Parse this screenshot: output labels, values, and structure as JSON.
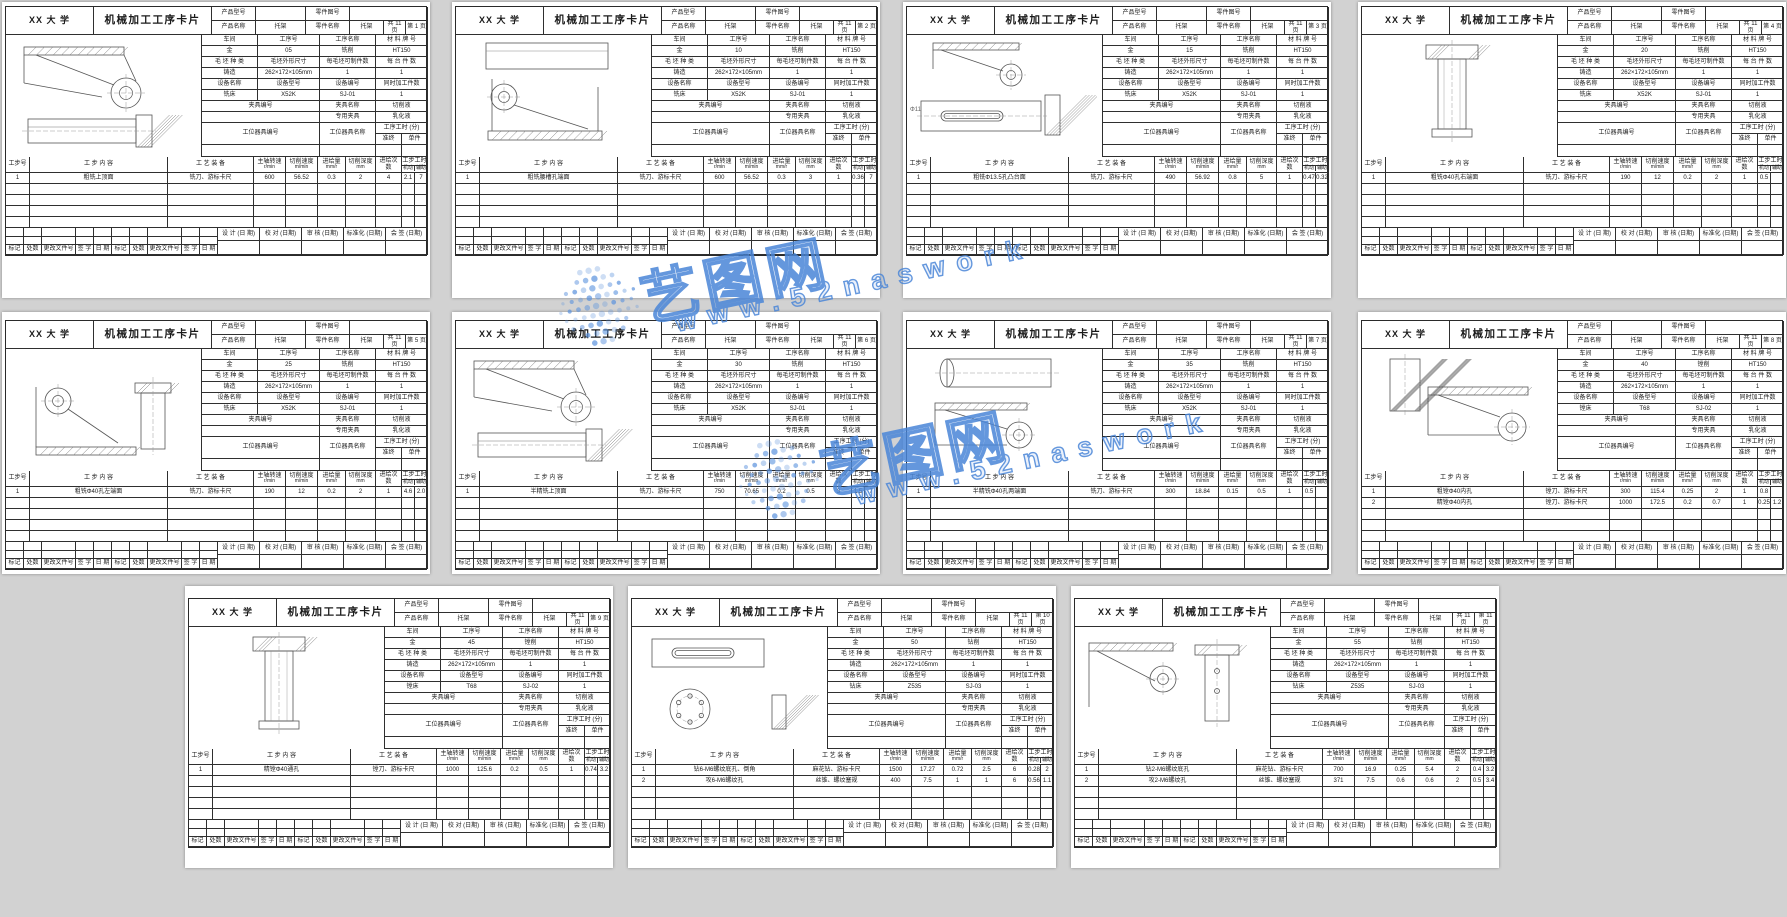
{
  "ui": {
    "background_color": "#d2d2d2",
    "paper_color": "#ffffff",
    "line_color": "#2f2f2f",
    "watermark_color": "#4a86d8"
  },
  "watermark": {
    "brand": "艺图网",
    "url": "www.52naswork"
  },
  "card_template": {
    "university": "XX 大 学",
    "title": "机械加工工序卡片",
    "labels": {
      "product_model": "产品型号",
      "part_drawing_no": "零件图号",
      "product_name": "产品名称",
      "part_name": "零件名称",
      "pages_total": "共 11 页",
      "workshop": "车间",
      "process_no": "工序号",
      "process_name": "工序名称",
      "material_grade": "材 料 牌 号",
      "blank_type": "毛 坯 种 类",
      "blank_size": "毛坯外形尺寸",
      "parts_per_blank": "每毛坯可制件数",
      "parts_per_unit": "每 台 件 数",
      "equip_name": "设备名称",
      "equip_model": "设备型号",
      "equip_no": "设备编号",
      "simultaneous": "同时加工件数",
      "fixture_no": "夹具编号",
      "fixture_name": "夹具名称",
      "coolant": "切削液",
      "tooling_no": "工位器具编号",
      "tooling_name": "工位器具名称",
      "process_time": "工序工时 (分)",
      "setup_time": "准终",
      "piece_time": "单件"
    },
    "step_headers": {
      "step_no": "工步号",
      "step_content": "工  步  内  容",
      "step_tooling": "工 艺 装 备",
      "spindle_speed": "主轴转速",
      "spindle_speed_unit": "r/min",
      "cutting_speed": "切削速度",
      "cutting_speed_unit": "m/min",
      "feed": "进给量",
      "feed_unit": "mm/r",
      "cut_depth": "切削深度",
      "cut_depth_unit": "mm",
      "passes": "进给次数",
      "step_time": "工步工时",
      "time_machine": "机动",
      "time_aux": "辅助"
    },
    "footer_sign": [
      "设 计 (日 期)",
      "校 对 (日期)",
      "审 核 (日期)",
      "标准化 (日期)",
      "会 签 (日期)"
    ],
    "footer_marks": [
      "标记",
      "处数",
      "更改文件号",
      "签  字",
      "日  期",
      "标记",
      "处数",
      "更改文件号",
      "签  字",
      "日  期"
    ]
  },
  "shared_values": {
    "product_name": "托架",
    "part_name": "托架",
    "workshop": "金",
    "material_grade": "HT150",
    "blank_type": "铸造",
    "blank_size": "262×172×105mm",
    "parts_per_blank": "1",
    "parts_per_unit": "1",
    "simultaneous": "1",
    "fixture_name": "专用夹具",
    "coolant": "乳化液"
  },
  "pages": [
    {
      "page_label": "第 1 页",
      "process_no": "05",
      "process_name": "铣削",
      "equip": [
        "铣床",
        "X52K",
        "SJ-01"
      ],
      "drawing": "A",
      "steps": [
        [
          "1",
          "粗铣上顶面",
          "铣刀、游标卡尺",
          "600",
          "56.52",
          "0.3",
          "2",
          "4",
          "2.1",
          "7"
        ]
      ]
    },
    {
      "page_label": "第 2 页",
      "process_no": "10",
      "process_name": "铣削",
      "equip": [
        "铣床",
        "X52K",
        "SJ-01"
      ],
      "drawing": "B",
      "steps": [
        [
          "1",
          "粗铣腰槽孔端面",
          "铣刀、游标卡尺",
          "600",
          "56.52",
          "0.3",
          "3",
          "1",
          "0.36",
          "7"
        ]
      ]
    },
    {
      "page_label": "第 3 页",
      "process_no": "15",
      "process_name": "铣削",
      "equip": [
        "铣床",
        "X52K",
        "SJ-01"
      ],
      "drawing": "C",
      "steps": [
        [
          "1",
          "粗铣Φ13.5孔凸台面",
          "铣刀、游标卡尺",
          "490",
          "56.92",
          "0.8",
          "5",
          "1",
          "0.47",
          "0.32"
        ]
      ]
    },
    {
      "page_label": "第 4 页",
      "process_no": "20",
      "process_name": "铣削",
      "equip": [
        "铣床",
        "X52K",
        "SJ-01"
      ],
      "drawing": "D",
      "steps": [
        [
          "1",
          "粗铣Φ40孔右端面",
          "铣刀、游标卡尺",
          "190",
          "12",
          "0.2",
          "2",
          "1",
          "0.5",
          ""
        ]
      ]
    },
    {
      "page_label": "第 5 页",
      "process_no": "25",
      "process_name": "铣削",
      "equip": [
        "铣床",
        "X52K",
        "SJ-01"
      ],
      "drawing": "B5",
      "steps": [
        [
          "1",
          "粗铣Φ40孔左端面",
          "铣刀、游标卡尺",
          "190",
          "12",
          "0.2",
          "2",
          "1",
          "4.6",
          "2.0"
        ]
      ]
    },
    {
      "page_label": "第 6 页",
      "process_no": "30",
      "process_name": "铣削",
      "equip": [
        "铣床",
        "X52K",
        "SJ-01"
      ],
      "drawing": "A",
      "steps": [
        [
          "1",
          "半精铣上顶面",
          "铣刀、游标卡尺",
          "750",
          "70.65",
          "0.2",
          "0.5",
          "3",
          "1.5",
          "7"
        ]
      ]
    },
    {
      "page_label": "第 7 页",
      "process_no": "35",
      "process_name": "铣削",
      "equip": [
        "铣床",
        "X52K",
        "SJ-01"
      ],
      "drawing": "E",
      "steps": [
        [
          "1",
          "半精铣Φ40孔两端面",
          "铣刀、游标卡尺",
          "300",
          "18.84",
          "0.15",
          "0.5",
          "1",
          "0.5",
          ""
        ]
      ]
    },
    {
      "page_label": "第 8 页",
      "process_no": "40",
      "process_name": "镗削",
      "equip": [
        "镗床",
        "T68",
        "SJ-02"
      ],
      "drawing": "F",
      "steps": [
        [
          "1",
          "粗镗Φ40内孔",
          "镗刀、游标卡尺",
          "300",
          "115.4",
          "0.25",
          "2",
          "1",
          "0.8",
          ""
        ],
        [
          "2",
          "精镗Φ40内孔",
          "镗刀、游标卡尺",
          "1000",
          "172.5",
          "0.2",
          "0.7",
          "1",
          "0.25",
          "1.2"
        ]
      ]
    },
    {
      "page_label": "第 9 页",
      "process_no": "45",
      "process_name": "镗削",
      "equip": [
        "镗床",
        "T68",
        "SJ-02"
      ],
      "drawing": "D",
      "steps": [
        [
          "1",
          "精镗Φ40通孔",
          "镗刀、游标卡尺",
          "1000",
          "125.6",
          "0.2",
          "0.5",
          "1",
          "0.74",
          "3.2"
        ]
      ]
    },
    {
      "page_label": "第 10 页",
      "process_no": "50",
      "process_name": "钻削",
      "equip": [
        "钻床",
        "Z535",
        "SJ-03"
      ],
      "drawing": "C10",
      "steps": [
        [
          "1",
          "钻6-M6螺纹底孔、倒角",
          "麻花钻、游标卡尺",
          "1500",
          "17.27",
          "0.72",
          "2.5",
          "6",
          "0.28",
          "2"
        ],
        [
          "2",
          "攻6-M6螺纹孔",
          "丝锥、螺纹塞规",
          "400",
          "7.5",
          "1",
          "1",
          "6",
          "0.56",
          "1.1"
        ]
      ]
    },
    {
      "page_label": "第 11 页",
      "process_no": "55",
      "process_name": "钻削",
      "equip": [
        "钻床",
        "Z535",
        "SJ-03"
      ],
      "drawing": "G",
      "steps": [
        [
          "1",
          "钻2-M6螺纹底孔",
          "麻花钻、游标卡尺",
          "700",
          "16.9",
          "0.25",
          "5.4",
          "2",
          "0.4",
          "3.2"
        ],
        [
          "2",
          "攻2-M6螺纹孔",
          "丝锥、螺纹塞规",
          "371",
          "7.5",
          "0.6",
          "0.6",
          "2",
          "0.5",
          "3.4"
        ]
      ]
    }
  ]
}
